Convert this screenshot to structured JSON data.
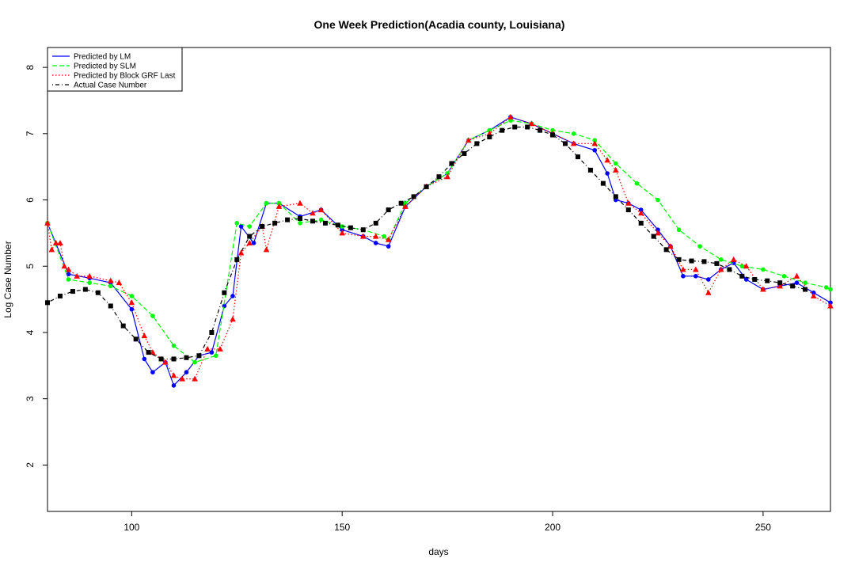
{
  "chart_data": {
    "type": "line",
    "title": "One Week Prediction(Acadia county, Louisiana)",
    "xlabel": "days",
    "ylabel": "Log Case Number",
    "xlim": [
      80,
      266
    ],
    "ylim": [
      1.3,
      8.3
    ],
    "xticks": [
      100,
      150,
      200,
      250
    ],
    "yticks": [
      2,
      3,
      4,
      5,
      6,
      7,
      8
    ],
    "grid": false,
    "legend_position": "top-left",
    "legend": [
      {
        "name": "Predicted by LM",
        "color": "#0000ff",
        "dash": "solid"
      },
      {
        "name": "Predicted by SLM",
        "color": "#00ff00",
        "dash": "dashed"
      },
      {
        "name": "Predicted by Block GRF Last",
        "color": "#ff0000",
        "dash": "dotted"
      },
      {
        "name": "Actual Case Number",
        "color": "#000000",
        "dash": "dotdash"
      }
    ],
    "series": [
      {
        "name": "Predicted by LM",
        "color": "#0000ff",
        "marker": "circle",
        "x": [
          80,
          85,
          90,
          95,
          100,
          103,
          105,
          108,
          110,
          113,
          116,
          119,
          122,
          124,
          126,
          129,
          132,
          135,
          140,
          145,
          150,
          155,
          158,
          161,
          165,
          170,
          175,
          180,
          185,
          190,
          195,
          200,
          205,
          210,
          213,
          215,
          218,
          221,
          225,
          228,
          231,
          234,
          237,
          240,
          243,
          246,
          250,
          254,
          258,
          262,
          266
        ],
        "y": [
          5.65,
          4.88,
          4.82,
          4.75,
          4.35,
          3.6,
          3.4,
          3.55,
          3.2,
          3.4,
          3.65,
          3.7,
          4.4,
          4.55,
          5.6,
          5.35,
          5.95,
          5.95,
          5.75,
          5.85,
          5.55,
          5.45,
          5.35,
          5.3,
          5.9,
          6.2,
          6.4,
          6.9,
          7.05,
          7.25,
          7.15,
          7.0,
          6.85,
          6.75,
          6.4,
          6.0,
          5.95,
          5.85,
          5.55,
          5.3,
          4.85,
          4.85,
          4.8,
          4.95,
          5.05,
          4.8,
          4.65,
          4.7,
          4.75,
          4.6,
          4.45
        ]
      },
      {
        "name": "Predicted by SLM",
        "color": "#00ff00",
        "marker": "circle",
        "x": [
          80,
          85,
          90,
          95,
          100,
          105,
          110,
          115,
          120,
          125,
          128,
          132,
          135,
          140,
          145,
          150,
          155,
          160,
          161,
          165,
          170,
          175,
          180,
          185,
          190,
          195,
          200,
          205,
          210,
          215,
          220,
          225,
          230,
          235,
          240,
          245,
          250,
          255,
          260,
          265,
          266
        ],
        "y": [
          5.65,
          4.8,
          4.75,
          4.7,
          4.55,
          4.25,
          3.8,
          3.55,
          3.65,
          5.65,
          5.6,
          5.95,
          5.95,
          5.65,
          5.7,
          5.6,
          5.55,
          5.45,
          5.4,
          5.95,
          6.2,
          6.4,
          6.9,
          7.05,
          7.2,
          7.15,
          7.05,
          7.0,
          6.9,
          6.55,
          6.25,
          6.0,
          5.55,
          5.3,
          5.1,
          5.0,
          4.95,
          4.85,
          4.75,
          4.68,
          4.65
        ]
      },
      {
        "name": "Predicted by Block GRF Last",
        "color": "#ff0000",
        "marker": "triangle",
        "x": [
          80,
          81,
          82,
          83,
          84,
          85,
          87,
          90,
          95,
          97,
          100,
          103,
          105,
          108,
          110,
          112,
          115,
          118,
          121,
          124,
          126,
          128,
          131,
          132,
          135,
          140,
          143,
          145,
          150,
          155,
          158,
          161,
          165,
          170,
          175,
          180,
          185,
          190,
          195,
          200,
          205,
          210,
          213,
          215,
          218,
          221,
          225,
          228,
          231,
          234,
          237,
          240,
          243,
          246,
          250,
          254,
          258,
          262,
          266
        ],
        "y": [
          5.65,
          5.25,
          5.35,
          5.35,
          5.0,
          4.95,
          4.85,
          4.85,
          4.78,
          4.75,
          4.45,
          3.95,
          3.7,
          3.55,
          3.35,
          3.3,
          3.3,
          3.75,
          3.75,
          4.2,
          5.2,
          5.35,
          5.6,
          5.25,
          5.9,
          5.95,
          5.8,
          5.85,
          5.5,
          5.45,
          5.45,
          5.4,
          5.9,
          6.2,
          6.35,
          6.9,
          7.0,
          7.25,
          7.15,
          7.0,
          6.85,
          6.85,
          6.6,
          6.45,
          5.95,
          5.8,
          5.5,
          5.3,
          4.95,
          4.95,
          4.6,
          4.95,
          5.1,
          5.0,
          4.65,
          4.7,
          4.85,
          4.55,
          4.4
        ]
      },
      {
        "name": "Actual Case Number",
        "color": "#000000",
        "marker": "square",
        "x": [
          80,
          83,
          86,
          89,
          92,
          95,
          98,
          101,
          104,
          107,
          110,
          113,
          116,
          119,
          122,
          125,
          128,
          131,
          134,
          137,
          140,
          143,
          146,
          149,
          152,
          155,
          158,
          161,
          164,
          167,
          170,
          173,
          176,
          179,
          182,
          185,
          188,
          191,
          194,
          197,
          200,
          203,
          206,
          209,
          212,
          215,
          218,
          221,
          224,
          227,
          230,
          233,
          236,
          239,
          242,
          245,
          248,
          251,
          254,
          257,
          260
        ],
        "y": [
          4.45,
          4.55,
          4.62,
          4.65,
          4.6,
          4.4,
          4.1,
          3.9,
          3.7,
          3.6,
          3.6,
          3.62,
          3.65,
          4.0,
          4.6,
          5.1,
          5.45,
          5.6,
          5.65,
          5.7,
          5.72,
          5.68,
          5.65,
          5.62,
          5.58,
          5.55,
          5.65,
          5.85,
          5.95,
          6.05,
          6.2,
          6.35,
          6.55,
          6.7,
          6.85,
          6.95,
          7.05,
          7.1,
          7.1,
          7.05,
          6.98,
          6.85,
          6.65,
          6.45,
          6.25,
          6.05,
          5.85,
          5.65,
          5.45,
          5.25,
          5.1,
          5.08,
          5.07,
          5.04,
          4.95,
          4.85,
          4.8,
          4.78,
          4.75,
          4.7,
          4.65
        ]
      }
    ]
  }
}
